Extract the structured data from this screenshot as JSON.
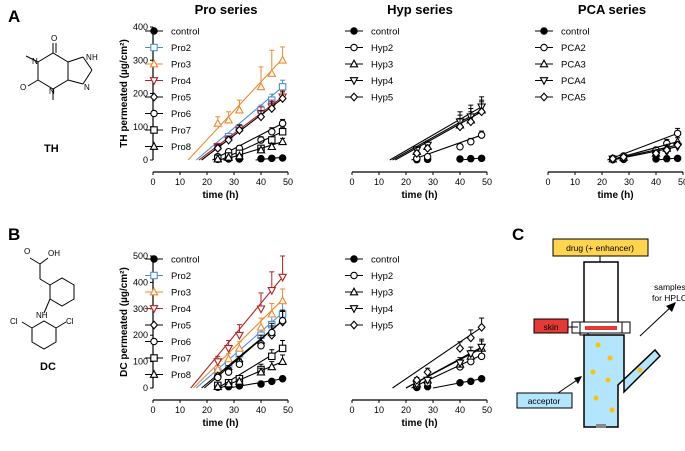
{
  "panels": {
    "A": "A",
    "B": "B",
    "C": "C"
  },
  "molecules": {
    "TH": {
      "label": "TH",
      "atoms": [
        "N",
        "N",
        "N",
        "N",
        "O",
        "O",
        "H"
      ]
    },
    "DC": {
      "label": "DC",
      "atoms": [
        "O",
        "OH",
        "NH",
        "Cl",
        "Cl"
      ]
    }
  },
  "colors": {
    "black": "#000000",
    "pro2": "#4a90d9",
    "pro3": "#f08a2c",
    "pro4": "#b22222",
    "yellow_box": "#ffd54f",
    "red_box": "#e53935",
    "blue_box": "#b3e5fc",
    "liquid": "#b3e5fc",
    "dot": "#ffc107"
  },
  "diagram": {
    "drug_label": "drug (+ enhancer)",
    "skin_label": "skin",
    "samples_label": "samples\nfor HPLC",
    "acceptor_label": "acceptor"
  },
  "chart_data": [
    {
      "type": "line",
      "id": "A-pro",
      "panel": "A",
      "title": "Pro series",
      "ylabel": "TH permeated (µg/cm²)",
      "xlabel": "time (h)",
      "xlim": [
        0,
        50
      ],
      "ylim": [
        0,
        400
      ],
      "xticks": [
        0,
        10,
        20,
        30,
        40,
        50
      ],
      "yticks": [
        0,
        100,
        200,
        300,
        400
      ],
      "x": [
        24,
        28,
        32,
        40,
        44,
        48
      ],
      "series": [
        {
          "name": "control",
          "marker": "circle-filled",
          "color": "#000000",
          "values": [
            2,
            3,
            3,
            4,
            5,
            6
          ],
          "err": [
            1,
            1,
            1,
            1,
            1,
            1
          ],
          "fit": [
            [
              38,
              0
            ],
            [
              48,
              8
            ]
          ]
        },
        {
          "name": "Pro2",
          "marker": "square",
          "color": "#4a90d9",
          "values": [
            40,
            70,
            95,
            150,
            180,
            220
          ],
          "err": [
            8,
            10,
            12,
            15,
            18,
            20
          ],
          "fit": [
            [
              16,
              0
            ],
            [
              48,
              220
            ]
          ]
        },
        {
          "name": "Pro3",
          "marker": "triangle-up",
          "color": "#f08a2c",
          "values": [
            110,
            120,
            150,
            220,
            260,
            300
          ],
          "err": [
            20,
            25,
            30,
            60,
            70,
            40
          ],
          "fit": [
            [
              13,
              0
            ],
            [
              48,
              305
            ]
          ]
        },
        {
          "name": "Pro4",
          "marker": "triangle-down",
          "color": "#b22222",
          "values": [
            40,
            60,
            90,
            140,
            160,
            190
          ],
          "err": [
            10,
            12,
            15,
            20,
            20,
            20
          ],
          "fit": [
            [
              17,
              0
            ],
            [
              48,
              190
            ]
          ]
        },
        {
          "name": "Pro5",
          "marker": "diamond",
          "color": "#000000",
          "values": [
            35,
            60,
            90,
            130,
            155,
            185
          ],
          "err": [
            10,
            12,
            15,
            18,
            20,
            20
          ],
          "fit": [
            [
              18,
              0
            ],
            [
              48,
              185
            ]
          ]
        },
        {
          "name": "Pro6",
          "marker": "circle",
          "color": "#000000",
          "values": [
            10,
            25,
            35,
            60,
            85,
            110
          ],
          "err": [
            5,
            5,
            8,
            10,
            12,
            12
          ],
          "fit": [
            [
              22,
              0
            ],
            [
              48,
              110
            ]
          ]
        },
        {
          "name": "Pro7",
          "marker": "square",
          "color": "#000000",
          "values": [
            5,
            12,
            20,
            35,
            60,
            85
          ],
          "err": [
            3,
            4,
            6,
            8,
            10,
            12
          ],
          "fit": [
            [
              25,
              0
            ],
            [
              48,
              85
            ]
          ]
        },
        {
          "name": "Pro8",
          "marker": "triangle-up",
          "color": "#000000",
          "values": [
            3,
            8,
            12,
            30,
            40,
            55
          ],
          "err": [
            2,
            3,
            4,
            6,
            8,
            10
          ],
          "fit": [
            [
              26,
              0
            ],
            [
              48,
              55
            ]
          ]
        }
      ]
    },
    {
      "type": "line",
      "id": "A-hyp",
      "panel": "A",
      "title": "Hyp series",
      "ylabel": "",
      "xlabel": "time (h)",
      "xlim": [
        0,
        50
      ],
      "ylim": [
        0,
        400
      ],
      "xticks": [
        0,
        10,
        20,
        30,
        40,
        50
      ],
      "yticks": [],
      "x": [
        24,
        28,
        40,
        44,
        48
      ],
      "series": [
        {
          "name": "control",
          "marker": "circle-filled",
          "color": "#000000",
          "values": [
            1,
            2,
            3,
            4,
            5
          ],
          "err": [
            1,
            1,
            1,
            1,
            1
          ],
          "fit": [
            [
              40,
              0
            ],
            [
              48,
              6
            ]
          ]
        },
        {
          "name": "Hyp2",
          "marker": "circle",
          "color": "#000000",
          "values": [
            5,
            10,
            40,
            55,
            75
          ],
          "err": [
            3,
            4,
            8,
            10,
            12
          ],
          "fit": [
            [
              22,
              0
            ],
            [
              48,
              75
            ]
          ]
        },
        {
          "name": "Hyp3",
          "marker": "triangle-up",
          "color": "#000000",
          "values": [
            25,
            40,
            105,
            120,
            150
          ],
          "err": [
            8,
            10,
            30,
            35,
            30
          ],
          "fit": [
            [
              15,
              0
            ],
            [
              48,
              150
            ]
          ]
        },
        {
          "name": "Hyp4",
          "marker": "triangle-down",
          "color": "#000000",
          "values": [
            30,
            45,
            115,
            130,
            160
          ],
          "err": [
            10,
            12,
            30,
            35,
            30
          ],
          "fit": [
            [
              14,
              0
            ],
            [
              48,
              160
            ]
          ]
        },
        {
          "name": "Hyp5",
          "marker": "diamond",
          "color": "#000000",
          "values": [
            20,
            35,
            100,
            115,
            145
          ],
          "err": [
            8,
            10,
            25,
            30,
            30
          ],
          "fit": [
            [
              16,
              0
            ],
            [
              48,
              145
            ]
          ]
        }
      ]
    },
    {
      "type": "line",
      "id": "A-pca",
      "panel": "A",
      "title": "PCA series",
      "ylabel": "",
      "xlabel": "time (h)",
      "xlim": [
        0,
        50
      ],
      "ylim": [
        0,
        400
      ],
      "xticks": [
        0,
        10,
        20,
        30,
        40,
        50
      ],
      "yticks": [],
      "x": [
        24,
        28,
        40,
        44,
        48
      ],
      "series": [
        {
          "name": "control",
          "marker": "circle-filled",
          "color": "#000000",
          "values": [
            1,
            2,
            3,
            4,
            5
          ],
          "err": [
            1,
            1,
            1,
            1,
            1
          ],
          "fit": [
            [
              40,
              0
            ],
            [
              48,
              6
            ]
          ]
        },
        {
          "name": "PCA2",
          "marker": "circle",
          "color": "#000000",
          "values": [
            5,
            12,
            30,
            50,
            80
          ],
          "err": [
            3,
            4,
            8,
            12,
            15
          ],
          "fit": [
            [
              22,
              0
            ],
            [
              48,
              80
            ]
          ]
        },
        {
          "name": "PCA3",
          "marker": "triangle-up",
          "color": "#000000",
          "values": [
            3,
            8,
            20,
            35,
            55
          ],
          "err": [
            2,
            3,
            6,
            8,
            12
          ],
          "fit": [
            [
              23,
              0
            ],
            [
              48,
              55
            ]
          ]
        },
        {
          "name": "PCA4",
          "marker": "triangle-down",
          "color": "#000000",
          "values": [
            3,
            6,
            15,
            25,
            40
          ],
          "err": [
            2,
            3,
            5,
            7,
            10
          ],
          "fit": [
            [
              24,
              0
            ],
            [
              48,
              40
            ]
          ]
        },
        {
          "name": "PCA5",
          "marker": "diamond",
          "color": "#000000",
          "values": [
            4,
            9,
            20,
            30,
            45
          ],
          "err": [
            2,
            3,
            5,
            7,
            10
          ],
          "fit": [
            [
              23,
              0
            ],
            [
              48,
              45
            ]
          ]
        }
      ]
    },
    {
      "type": "line",
      "id": "B-pro",
      "panel": "B",
      "title": "",
      "ylabel": "DC permeated (µg/cm²)",
      "xlabel": "time (h)",
      "xlim": [
        0,
        50
      ],
      "ylim": [
        0,
        500
      ],
      "xticks": [
        0,
        10,
        20,
        30,
        40,
        50
      ],
      "yticks": [
        0,
        100,
        200,
        300,
        400,
        500
      ],
      "x": [
        24,
        28,
        32,
        40,
        44,
        48
      ],
      "series": [
        {
          "name": "control",
          "marker": "circle-filled",
          "color": "#000000",
          "values": [
            3,
            5,
            8,
            15,
            25,
            35
          ],
          "err": [
            2,
            3,
            4,
            5,
            8,
            10
          ],
          "fit": [
            [
              28,
              0
            ],
            [
              48,
              35
            ]
          ]
        },
        {
          "name": "Pro2",
          "marker": "square",
          "color": "#4a90d9",
          "values": [
            60,
            90,
            130,
            200,
            240,
            280
          ],
          "err": [
            10,
            15,
            20,
            30,
            35,
            40
          ],
          "fit": [
            [
              16,
              0
            ],
            [
              48,
              285
            ]
          ]
        },
        {
          "name": "Pro3",
          "marker": "triangle-up",
          "color": "#f08a2c",
          "values": [
            70,
            110,
            150,
            230,
            280,
            330
          ],
          "err": [
            15,
            20,
            25,
            35,
            40,
            45
          ],
          "fit": [
            [
              15,
              0
            ],
            [
              48,
              335
            ]
          ]
        },
        {
          "name": "Pro4",
          "marker": "triangle-down",
          "color": "#b22222",
          "values": [
            100,
            150,
            200,
            300,
            370,
            420
          ],
          "err": [
            20,
            30,
            40,
            60,
            70,
            80
          ],
          "fit": [
            [
              14,
              0
            ],
            [
              48,
              420
            ]
          ]
        },
        {
          "name": "Pro5",
          "marker": "diamond",
          "color": "#000000",
          "values": [
            45,
            70,
            100,
            170,
            200,
            250
          ],
          "err": [
            10,
            15,
            20,
            30,
            35,
            40
          ],
          "fit": [
            [
              18,
              0
            ],
            [
              48,
              255
            ]
          ]
        },
        {
          "name": "Pro6",
          "marker": "circle",
          "color": "#000000",
          "values": [
            40,
            60,
            90,
            160,
            210,
            255
          ],
          "err": [
            10,
            15,
            20,
            30,
            35,
            40
          ],
          "fit": [
            [
              19,
              0
            ],
            [
              48,
              255
            ]
          ]
        },
        {
          "name": "Pro7",
          "marker": "square",
          "color": "#000000",
          "values": [
            10,
            20,
            35,
            70,
            120,
            150
          ],
          "err": [
            5,
            8,
            10,
            20,
            25,
            30
          ],
          "fit": [
            [
              24,
              0
            ],
            [
              48,
              150
            ]
          ]
        },
        {
          "name": "Pro8",
          "marker": "triangle-up",
          "color": "#000000",
          "values": [
            5,
            15,
            25,
            60,
            80,
            100
          ],
          "err": [
            3,
            6,
            8,
            15,
            20,
            25
          ],
          "fit": [
            [
              25,
              0
            ],
            [
              48,
              100
            ]
          ]
        }
      ]
    },
    {
      "type": "line",
      "id": "B-hyp",
      "panel": "B",
      "title": "",
      "ylabel": "",
      "xlabel": "time (h)",
      "xlim": [
        0,
        50
      ],
      "ylim": [
        0,
        500
      ],
      "xticks": [
        0,
        10,
        20,
        30,
        40,
        50
      ],
      "yticks": [],
      "x": [
        24,
        28,
        40,
        44,
        48
      ],
      "series": [
        {
          "name": "control",
          "marker": "circle-filled",
          "color": "#000000",
          "values": [
            2,
            5,
            20,
            25,
            35
          ],
          "err": [
            1,
            2,
            5,
            6,
            8
          ],
          "fit": [
            [
              30,
              0
            ],
            [
              48,
              35
            ]
          ]
        },
        {
          "name": "Hyp2",
          "marker": "circle",
          "color": "#000000",
          "values": [
            10,
            20,
            80,
            100,
            120
          ],
          "err": [
            5,
            8,
            15,
            20,
            25
          ],
          "fit": [
            [
              22,
              0
            ],
            [
              48,
              125
            ]
          ]
        },
        {
          "name": "Hyp3",
          "marker": "triangle-up",
          "color": "#000000",
          "values": [
            15,
            30,
            90,
            120,
            150
          ],
          "err": [
            6,
            10,
            18,
            22,
            28
          ],
          "fit": [
            [
              20,
              0
            ],
            [
              48,
              150
            ]
          ]
        },
        {
          "name": "Hyp4",
          "marker": "triangle-down",
          "color": "#000000",
          "values": [
            15,
            30,
            95,
            130,
            155
          ],
          "err": [
            6,
            10,
            20,
            25,
            30
          ],
          "fit": [
            [
              20,
              0
            ],
            [
              48,
              155
            ]
          ]
        },
        {
          "name": "Hyp5",
          "marker": "diamond",
          "color": "#000000",
          "values": [
            30,
            60,
            150,
            190,
            230
          ],
          "err": [
            10,
            15,
            25,
            30,
            35
          ],
          "fit": [
            [
              15,
              0
            ],
            [
              48,
              230
            ]
          ]
        }
      ]
    }
  ]
}
